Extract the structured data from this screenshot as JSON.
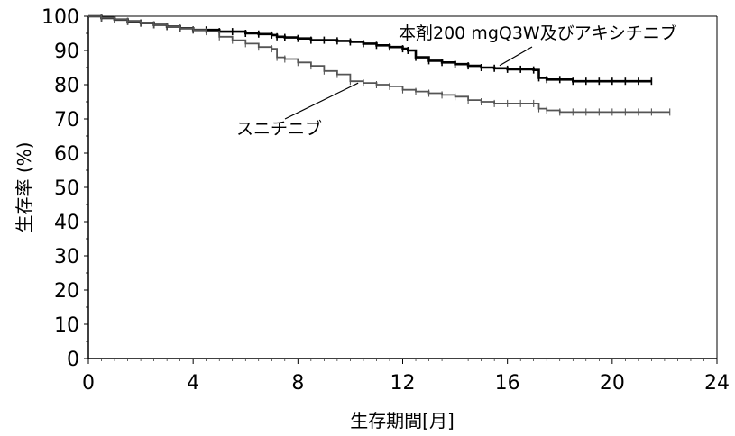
{
  "chart_data": {
    "type": "line",
    "xlabel": "生存期間[月]",
    "ylabel": "生存率 (%)",
    "xlim": [
      0,
      24
    ],
    "ylim": [
      0,
      100
    ],
    "x_ticks": [
      0,
      4,
      8,
      12,
      16,
      20,
      24
    ],
    "x_tick_labels": [
      "0",
      "4",
      "8",
      "12",
      "16",
      "20",
      "24"
    ],
    "y_ticks": [
      0,
      10,
      20,
      30,
      40,
      50,
      60,
      70,
      80,
      90,
      100
    ],
    "y_tick_labels": [
      "0",
      "10",
      "20",
      "30",
      "40",
      "50",
      "60",
      "70",
      "80",
      "90",
      "100"
    ],
    "grid": false,
    "legend": "annotations",
    "series": [
      {
        "name": "本剤200 mgQ3W及びアキシチニブ",
        "color": "#000000",
        "line_width": 2.6,
        "x": [
          0,
          0.5,
          1,
          1.5,
          2,
          2.5,
          3,
          3.5,
          4,
          4.5,
          5,
          5.5,
          6,
          6.5,
          7,
          7.2,
          7.5,
          8,
          8.5,
          9,
          9.5,
          10,
          10.5,
          11,
          11.5,
          12,
          12.2,
          12.5,
          13,
          13.5,
          14,
          14.5,
          15,
          15.5,
          16,
          16.5,
          17,
          17.2,
          17.5,
          18,
          18.5,
          19,
          19.5,
          20,
          20.5,
          21,
          21.5
        ],
        "y": [
          100,
          99.5,
          99,
          98.5,
          98,
          97.5,
          97,
          96.5,
          96,
          96,
          95.5,
          95.5,
          95,
          94.8,
          94.5,
          94,
          93.8,
          93.5,
          93,
          93,
          92.8,
          92.5,
          92,
          91.5,
          91,
          90.5,
          90,
          88,
          87,
          86.5,
          86,
          85.5,
          85,
          84.8,
          84.5,
          84.5,
          84.3,
          82,
          81.5,
          81.5,
          81,
          81,
          81,
          81,
          81,
          81,
          81
        ]
      },
      {
        "name": "スニチニブ",
        "color": "#555555",
        "line_width": 1.8,
        "x": [
          0,
          0.5,
          1,
          1.5,
          2,
          2.5,
          3,
          3.5,
          4,
          4.5,
          5,
          5.5,
          6,
          6.5,
          7,
          7.2,
          7.5,
          8,
          8.5,
          9,
          9.5,
          10,
          10.5,
          11,
          11.5,
          12,
          12.5,
          13,
          13.5,
          14,
          14.5,
          15,
          15.5,
          16,
          16.5,
          17,
          17.2,
          17.5,
          18,
          18.5,
          19,
          19.5,
          20,
          20.5,
          21,
          21.5,
          22.2
        ],
        "y": [
          100,
          99.5,
          99,
          98.5,
          98,
          97.5,
          97,
          96.5,
          96,
          95.5,
          94,
          93,
          92,
          91,
          90.5,
          88,
          87.5,
          86.5,
          85.5,
          84,
          83,
          81,
          80.5,
          80,
          79.5,
          78.5,
          78,
          77.5,
          77,
          76.5,
          75.5,
          75,
          74.5,
          74.5,
          74.5,
          74.5,
          73,
          72.5,
          72,
          72,
          72,
          72,
          72,
          72,
          72,
          72,
          72
        ]
      }
    ],
    "annotations": [
      {
        "text": "本剤200 mgQ3W及びアキシチニブ",
        "series": 0
      },
      {
        "text": "スニチニブ",
        "series": 1
      }
    ]
  }
}
